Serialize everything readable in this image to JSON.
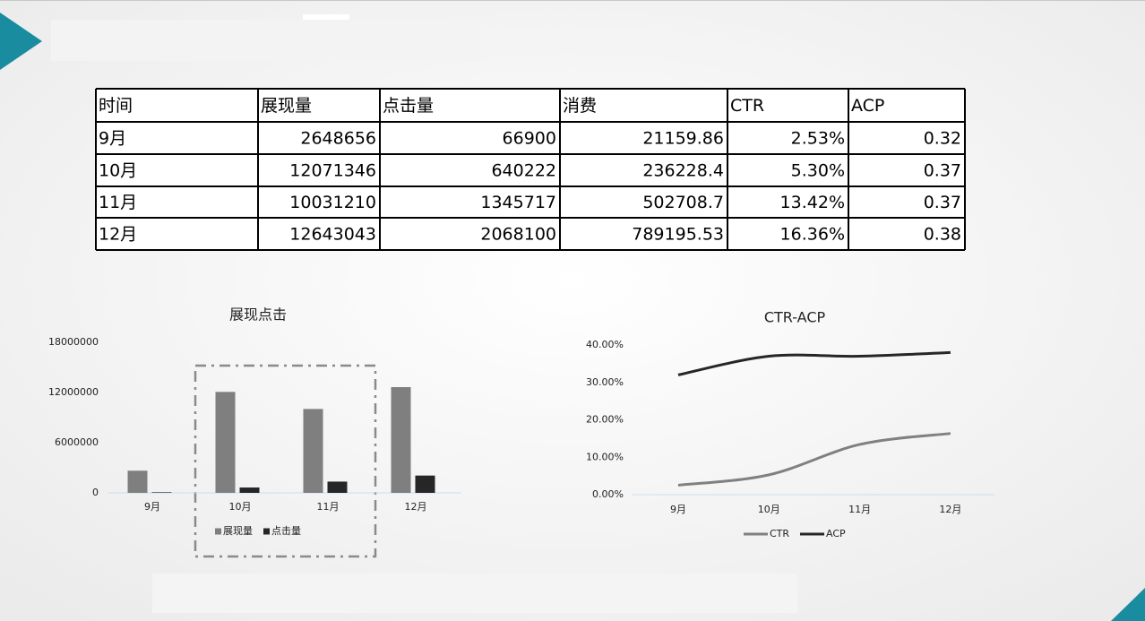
{
  "table": {
    "header": [
      "时间",
      "展现量",
      "点击量",
      "消费",
      "CTR",
      "ACP"
    ],
    "rows": [
      [
        "9月",
        "2648656",
        "66900",
        "21159.86",
        "2.53%",
        "0.32"
      ],
      [
        "10月",
        "12071346",
        "640222",
        "236228.4",
        "5.30%",
        "0.37"
      ],
      [
        "11月",
        "10031210",
        "1345717",
        "502708.7",
        "13.42%",
        "0.37"
      ],
      [
        "12月",
        "12643043",
        "2068100",
        "789195.53",
        "16.36%",
        "0.38"
      ]
    ]
  },
  "chart_data": [
    {
      "type": "bar",
      "title": "展现点击",
      "categories": [
        "9月",
        "10月",
        "11月",
        "12月"
      ],
      "series": [
        {
          "name": "展现量",
          "color": "#7f7f7f",
          "values": [
            2648656,
            12071346,
            10031210,
            12643043
          ]
        },
        {
          "name": "点击量",
          "color": "#262626",
          "values": [
            66900,
            640222,
            1345717,
            2068100
          ]
        }
      ],
      "ylim": [
        0,
        18000000
      ],
      "yticks": [
        0,
        6000000,
        12000000,
        18000000
      ],
      "legend": "bottom"
    },
    {
      "type": "line",
      "title": "CTR-ACP",
      "categories": [
        "9月",
        "10月",
        "11月",
        "12月"
      ],
      "series": [
        {
          "name": "CTR",
          "color": "#808080",
          "values": [
            0.0253,
            0.053,
            0.1342,
            0.1636
          ]
        },
        {
          "name": "ACP",
          "color": "#262626",
          "values": [
            0.32,
            0.37,
            0.37,
            0.38
          ]
        }
      ],
      "ylim": [
        0,
        0.4
      ],
      "yticks": [
        {
          "value": 0,
          "label": "0.00%"
        },
        {
          "value": 0.1,
          "label": "10.00%"
        },
        {
          "value": 0.2,
          "label": "20.00%"
        },
        {
          "value": 0.3,
          "label": "30.00%"
        },
        {
          "value": 0.4,
          "label": "40.00%"
        }
      ],
      "legend": "bottom"
    }
  ]
}
